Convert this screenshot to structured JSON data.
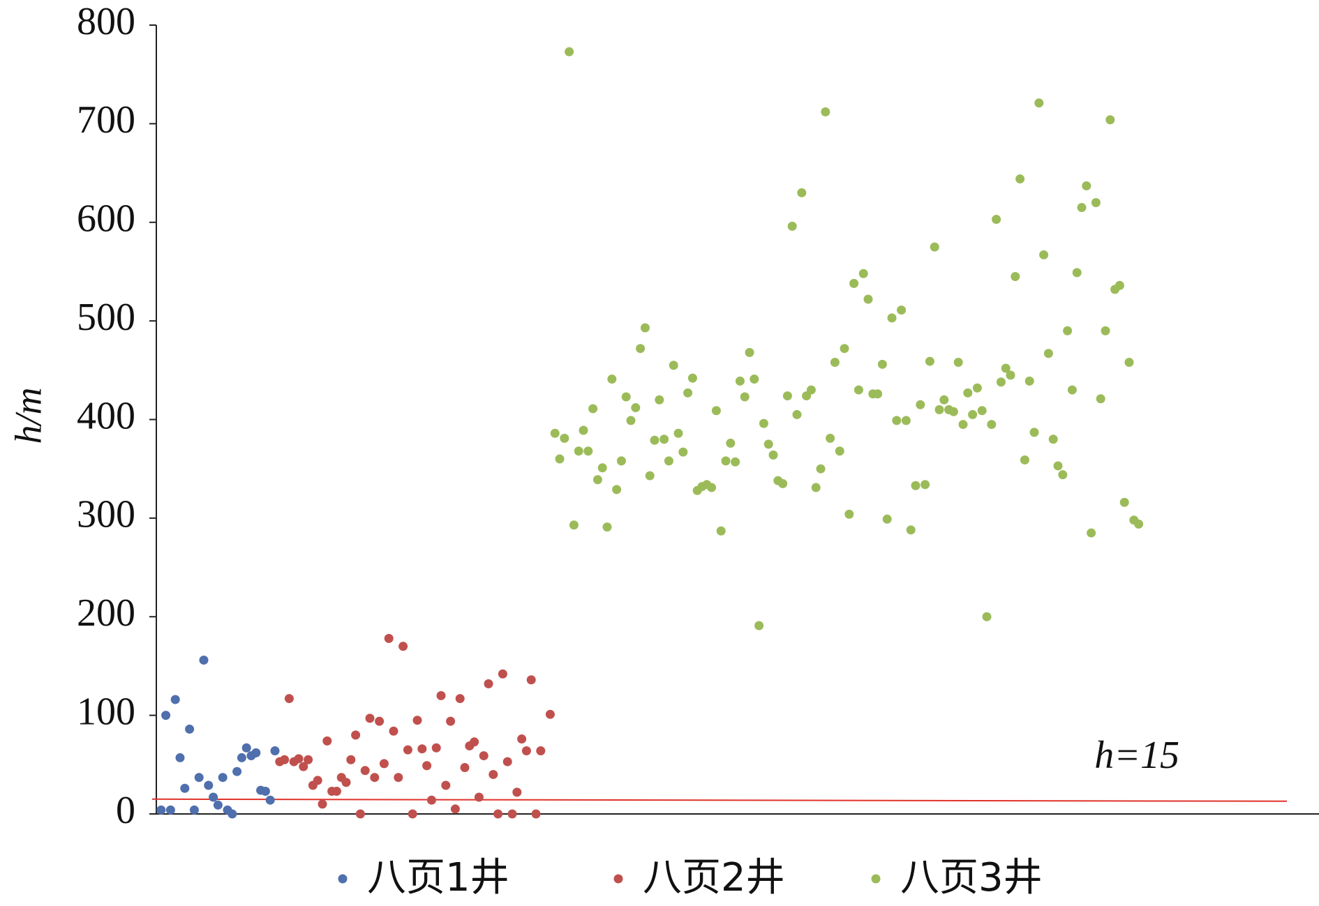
{
  "chart_data": {
    "type": "scatter",
    "y_label": "h/m",
    "ylim": [
      0,
      800
    ],
    "yticks": [
      0,
      100,
      200,
      300,
      400,
      500,
      600,
      700,
      800
    ],
    "xlim": [
      0,
      245
    ],
    "hline": {
      "value": 15,
      "label": "h=15",
      "color": "#e0322a"
    },
    "legend": "bottom",
    "series": [
      {
        "name": "八页1井",
        "color": "#4f6fad",
        "x": [
          1,
          2,
          3,
          4,
          5,
          6,
          7,
          8,
          9,
          10,
          11,
          12,
          13,
          14,
          15,
          16,
          17,
          18,
          19,
          20,
          21,
          22,
          23,
          24,
          25
        ],
        "values": [
          4,
          100,
          4,
          116,
          57,
          26,
          86,
          4,
          37,
          156,
          29,
          17,
          9,
          37,
          4,
          0,
          43,
          57,
          67,
          59,
          62,
          24,
          23,
          14,
          64
        ]
      },
      {
        "name": "八页2井",
        "color": "#c0504d",
        "x": [
          26,
          27,
          28,
          29,
          30,
          31,
          32,
          33,
          34,
          35,
          36,
          37,
          38,
          39,
          40,
          41,
          42,
          43,
          44,
          45,
          46,
          47,
          48,
          49,
          50,
          51,
          52,
          53,
          54,
          55,
          56,
          57,
          58,
          59,
          60,
          61,
          62,
          63,
          64,
          65,
          66,
          67,
          68,
          69,
          70,
          71,
          72,
          73,
          74,
          75,
          76,
          77,
          78,
          79,
          80,
          81,
          83
        ],
        "values": [
          53,
          55,
          117,
          53,
          56,
          48,
          55,
          29,
          34,
          10,
          74,
          23,
          23,
          37,
          32,
          55,
          80,
          0,
          44,
          97,
          37,
          94,
          51,
          178,
          84,
          37,
          170,
          65,
          0,
          95,
          66,
          49,
          14,
          67,
          120,
          29,
          94,
          5,
          117,
          47,
          69,
          73,
          17,
          59,
          132,
          40,
          0,
          142,
          53,
          0,
          22,
          76,
          64,
          136,
          0,
          64,
          101
        ]
      },
      {
        "name": "八页3井",
        "color": "#9bbb59",
        "x": [
          84,
          85,
          86,
          87,
          88,
          89,
          90,
          91,
          92,
          93,
          94,
          95,
          96,
          97,
          98,
          99,
          100,
          101,
          102,
          103,
          104,
          105,
          106,
          107,
          108,
          109,
          110,
          111,
          112,
          113,
          114,
          115,
          116,
          117,
          118,
          119,
          120,
          121,
          122,
          123,
          124,
          125,
          126,
          127,
          128,
          129,
          130,
          131,
          132,
          133,
          134,
          135,
          136,
          137,
          138,
          139,
          140,
          141,
          142,
          143,
          144,
          145,
          146,
          147,
          148,
          149,
          150,
          151,
          152,
          153,
          154,
          155,
          156,
          157,
          158,
          159,
          160,
          161,
          162,
          163,
          164,
          165,
          166,
          167,
          168,
          169,
          170,
          171,
          172,
          173,
          174,
          175,
          176,
          177,
          178,
          179,
          180,
          181,
          182,
          183,
          184,
          185,
          186,
          187,
          188,
          189,
          190,
          191,
          192,
          193,
          194,
          195,
          196,
          197,
          198,
          199,
          200,
          201,
          202,
          203,
          204,
          205,
          206,
          207
        ],
        "values": [
          386,
          360,
          381,
          773,
          293,
          368,
          389,
          368,
          411,
          339,
          351,
          291,
          441,
          329,
          358,
          423,
          399,
          412,
          472,
          493,
          343,
          379,
          420,
          380,
          358,
          455,
          386,
          367,
          427,
          442,
          328,
          332,
          334,
          331,
          409,
          287,
          358,
          376,
          357,
          439,
          423,
          468,
          441,
          191,
          396,
          375,
          364,
          338,
          335,
          424,
          596,
          405,
          630,
          424,
          430,
          331,
          350,
          712,
          381,
          458,
          368,
          472,
          304,
          538,
          430,
          548,
          522,
          426,
          426,
          456,
          299,
          503,
          399,
          511,
          399,
          288,
          333,
          415,
          334,
          459,
          575,
          410,
          420,
          410,
          408,
          458,
          395,
          427,
          405,
          432,
          409,
          200,
          395,
          603,
          438,
          452,
          445,
          545,
          644,
          359,
          439,
          387,
          721,
          567,
          467,
          380,
          353,
          344,
          490,
          430,
          549,
          615,
          637,
          285,
          620,
          421,
          490,
          704,
          532,
          536,
          316,
          458,
          298,
          294
        ]
      }
    ]
  }
}
